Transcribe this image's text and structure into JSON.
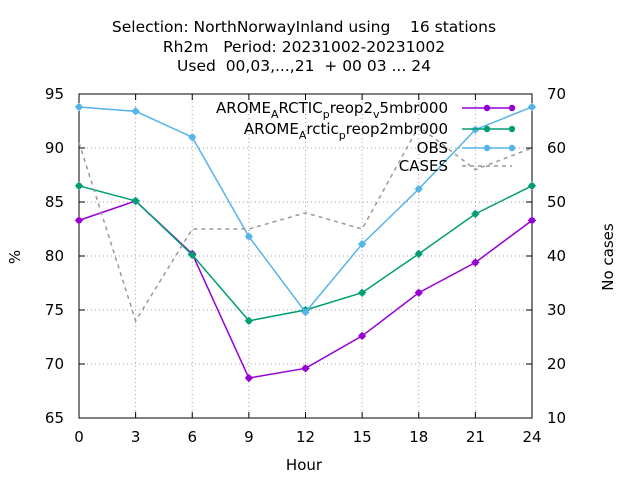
{
  "chart_data": {
    "type": "line",
    "title_lines": [
      "Selection: NorthNorwayInland using    16 stations",
      "Rh2m   Period: 20231002-20231002",
      "Used  00,03,...,21  + 00 03 ... 24"
    ],
    "xlabel": "Hour",
    "ylabel": "%",
    "y2label": "No cases",
    "x": [
      0,
      3,
      6,
      9,
      12,
      15,
      18,
      21,
      24
    ],
    "xlim": [
      0,
      24
    ],
    "ylim": [
      65,
      95
    ],
    "y2lim": [
      10,
      70
    ],
    "xticks": [
      "0",
      "3",
      "6",
      "9",
      "12",
      "15",
      "18",
      "21",
      "24"
    ],
    "yticks": [
      "65",
      "70",
      "75",
      "80",
      "85",
      "90",
      "95"
    ],
    "y2ticks": [
      "10",
      "20",
      "30",
      "40",
      "50",
      "60",
      "70"
    ],
    "grid": true,
    "legend_position": "top-right",
    "series": [
      {
        "name": "AROME_ARCTIC_preop2_v5mbr000",
        "legend_parts": [
          [
            "AROME",
            "base"
          ],
          [
            "A",
            "sub"
          ],
          [
            "RCTIC",
            "base"
          ],
          [
            "p",
            "sub"
          ],
          [
            "reop2",
            "base"
          ],
          [
            "v",
            "sub"
          ],
          [
            "5mbr000",
            "base"
          ]
        ],
        "color": "#9400d3",
        "dash": "",
        "axis": "left",
        "values": [
          83.3,
          85.1,
          80.2,
          68.7,
          69.6,
          72.6,
          76.6,
          79.4,
          83.3
        ]
      },
      {
        "name": "AROME_Arctic_preop2mbr000",
        "legend_parts": [
          [
            "AROME",
            "base"
          ],
          [
            "A",
            "sub"
          ],
          [
            "rctic",
            "base"
          ],
          [
            "p",
            "sub"
          ],
          [
            "reop2mbr000",
            "base"
          ]
        ],
        "color": "#009e73",
        "dash": "",
        "axis": "left",
        "values": [
          86.5,
          85.1,
          80.1,
          74.0,
          75.0,
          76.6,
          80.2,
          83.9,
          86.5
        ]
      },
      {
        "name": "OBS",
        "legend_parts": [
          [
            "OBS",
            "base"
          ]
        ],
        "color": "#56b4e9",
        "dash": "",
        "axis": "left",
        "values": [
          93.8,
          93.4,
          91.0,
          81.8,
          74.8,
          81.1,
          86.2,
          91.7,
          93.8
        ]
      },
      {
        "name": "CASES",
        "legend_parts": [
          [
            "CASES",
            "base"
          ]
        ],
        "color": "#999999",
        "dash": "4,4",
        "axis": "right",
        "values": [
          61,
          28,
          45,
          45,
          48,
          45,
          64,
          56,
          60
        ]
      }
    ]
  }
}
